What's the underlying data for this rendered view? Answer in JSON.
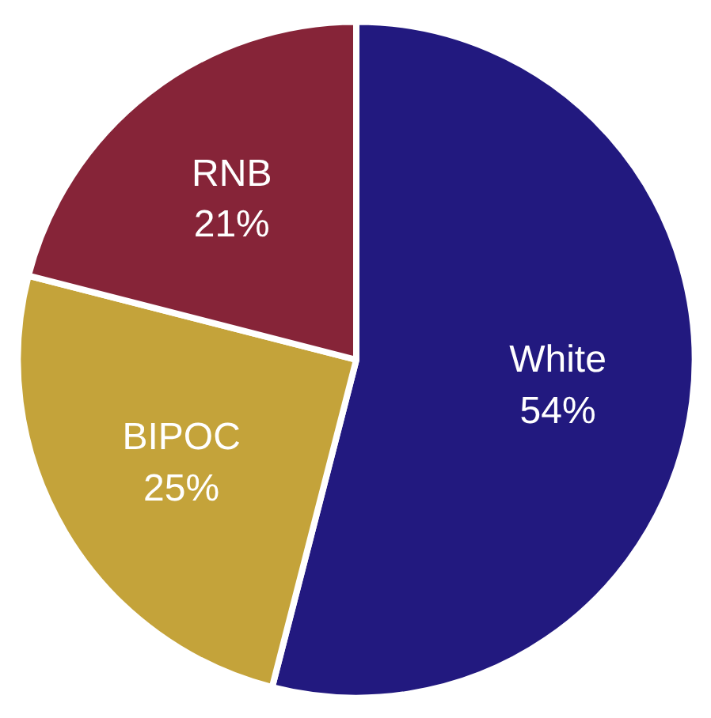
{
  "chart_data": {
    "type": "pie",
    "categories": [
      "White",
      "BIPOC",
      "RNB"
    ],
    "values": [
      54,
      25,
      21
    ],
    "value_labels": [
      "54%",
      "25%",
      "21%"
    ],
    "colors": [
      "#22197f",
      "#c4a33a",
      "#862438"
    ]
  }
}
